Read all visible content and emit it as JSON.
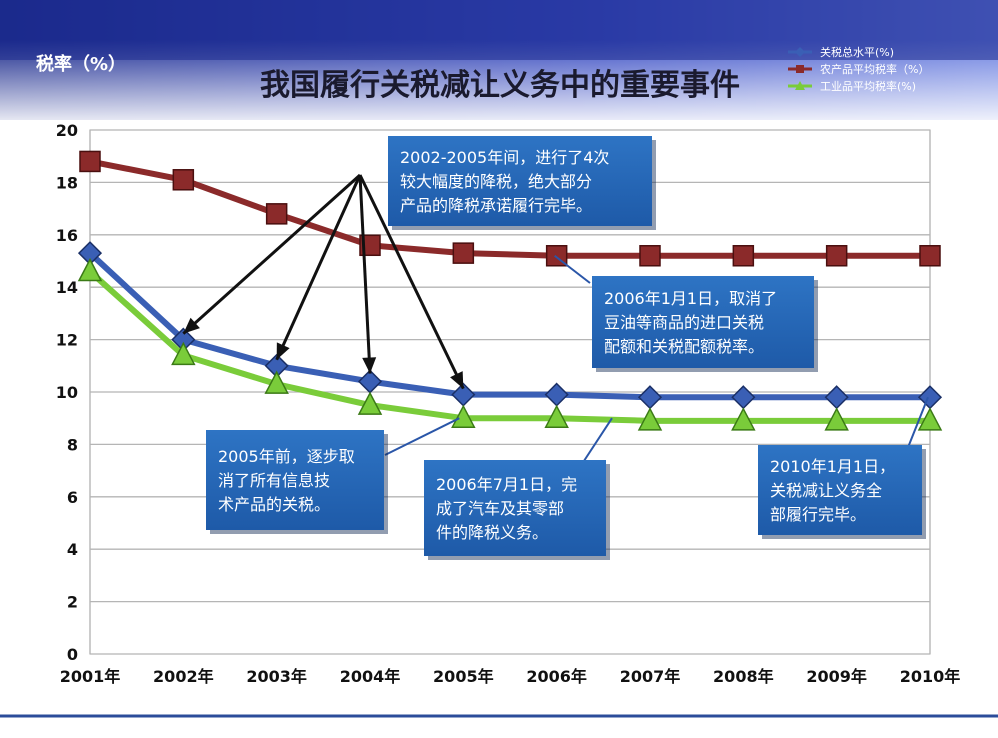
{
  "chart_data": {
    "type": "line",
    "title": "我国履行关税减让义务中的重要事件",
    "ylabel": "税率（%）",
    "xlabel": "",
    "categories": [
      "2001年",
      "2002年",
      "2003年",
      "2004年",
      "2005年",
      "2006年",
      "2007年",
      "2008年",
      "2009年",
      "2010年"
    ],
    "ylim": [
      0,
      20
    ],
    "yticks": [
      0,
      2,
      4,
      6,
      8,
      10,
      12,
      14,
      16,
      18,
      20
    ],
    "grid": true,
    "legend_position": "top-right",
    "series": [
      {
        "name": "关税总水平(%)",
        "color": "#3a5fb5",
        "marker": "diamond",
        "values": [
          15.3,
          12.0,
          11.0,
          10.4,
          9.9,
          9.9,
          9.8,
          9.8,
          9.8,
          9.8
        ]
      },
      {
        "name": "农产品平均税率（%）",
        "color": "#8b2a2a",
        "marker": "square",
        "values": [
          18.8,
          18.1,
          16.8,
          15.6,
          15.3,
          15.2,
          15.2,
          15.2,
          15.2,
          15.2
        ]
      },
      {
        "name": "工业品平均税率(%)",
        "color": "#7acc3a",
        "marker": "triangle",
        "values": [
          14.6,
          11.4,
          10.3,
          9.5,
          9.0,
          9.0,
          8.9,
          8.9,
          8.9,
          8.9
        ]
      }
    ],
    "annotations": [
      {
        "lines": [
          "2002-2005年间，进行了4次",
          "较大幅度的降税，绝大部分",
          "产品的降税承诺履行完毕。"
        ]
      },
      {
        "lines": [
          "2006年1月1日，取消了",
          "豆油等商品的进口关税",
          "配额和关税配额税率。"
        ]
      },
      {
        "lines": [
          "2005年前，逐步取",
          "消了所有信息技",
          "术产品的关税。"
        ]
      },
      {
        "lines": [
          "2006年7月1日，完",
          "成了汽车及其零部",
          "件的降税义务。"
        ]
      },
      {
        "lines": [
          "2010年1月1日，",
          "关税减让义务全",
          "部履行完毕。"
        ]
      }
    ]
  }
}
